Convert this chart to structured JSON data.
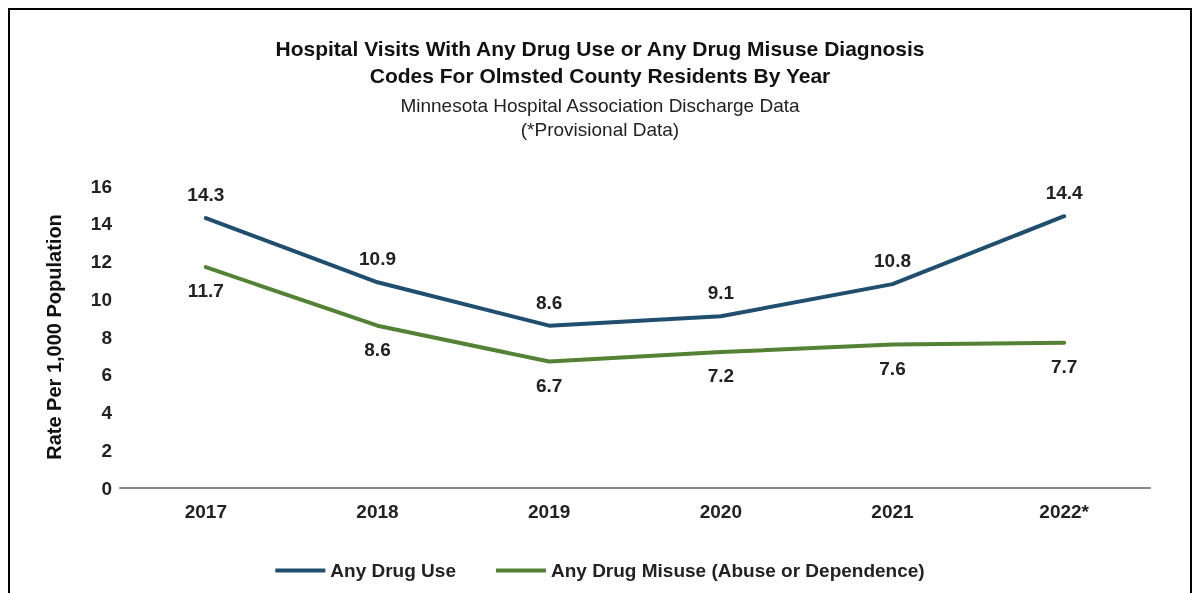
{
  "chart_data": {
    "type": "line",
    "title": "Hospital Visits With Any Drug Use or Any Drug Misuse Diagnosis\nCodes For Olmsted County Residents By Year",
    "subtitle": "Minnesota Hospital Association Discharge Data\n(*Provisional Data)",
    "ylabel": "Rate Per 1,000 Population",
    "categories": [
      "2017",
      "2018",
      "2019",
      "2020",
      "2021",
      "2022*"
    ],
    "series": [
      {
        "name": "Any Drug Use",
        "color": "#1f4e6e",
        "values": [
          14.3,
          10.9,
          8.6,
          9.1,
          10.8,
          14.4
        ]
      },
      {
        "name": "Any Drug Misuse (Abuse or Dependence)",
        "color": "#548235",
        "values": [
          11.7,
          8.6,
          6.7,
          7.2,
          7.6,
          7.7
        ]
      }
    ],
    "ylim": [
      0,
      16
    ],
    "yticks": [
      0,
      2,
      4,
      6,
      8,
      10,
      12,
      14,
      16
    ],
    "grid": false,
    "legend": "bottom",
    "marker": "none",
    "line_style": "solid",
    "data_labels": true
  }
}
